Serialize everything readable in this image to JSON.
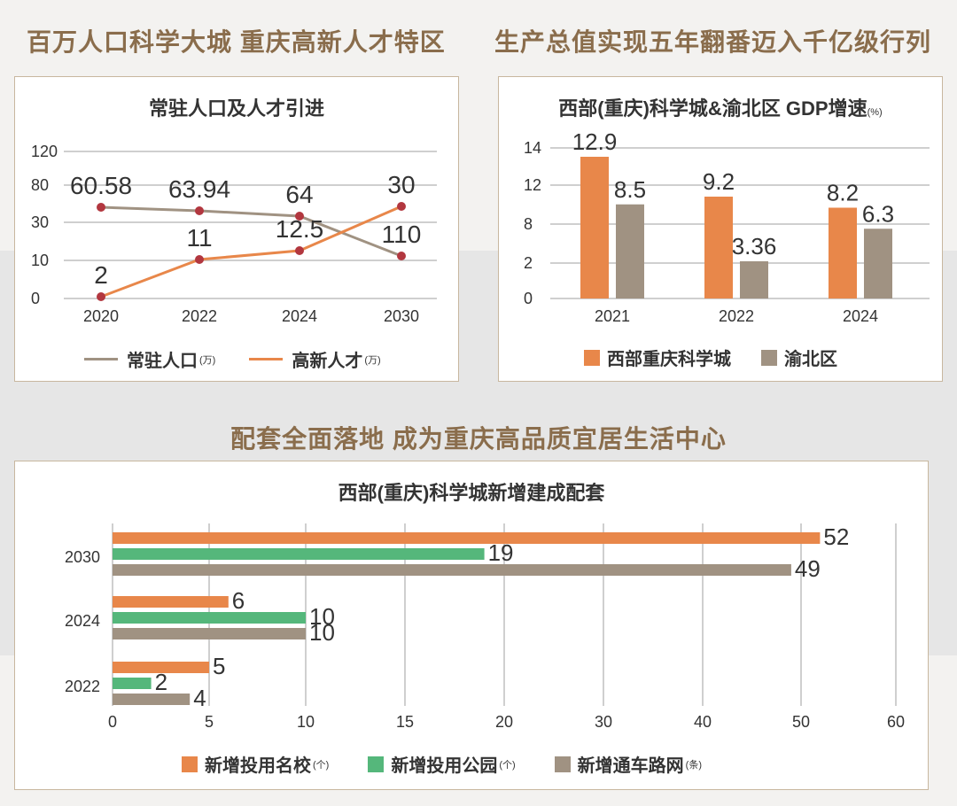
{
  "headings": {
    "top_left": "百万人口科学大城 重庆高新人才特区",
    "top_right": "生产总值实现五年翻番迈入千亿级行列",
    "bottom": "配套全面落地 成为重庆高品质宜居生活中心"
  },
  "colors": {
    "heading": "#8a6d4c",
    "orange": "#e8874a",
    "taupe": "#a09282",
    "green": "#55b77b",
    "marker": "#b2373f",
    "grid": "#cfcfcf",
    "band": "#e6e6e6"
  },
  "chart_data": [
    {
      "type": "line",
      "title": "常驻人口及人才引进",
      "x": [
        "2020",
        "2022",
        "2024",
        "2030"
      ],
      "y_ticks": [
        "0",
        "10",
        "30",
        "80",
        "120"
      ],
      "series": [
        {
          "name": "常驻人口",
          "unit": "(万)",
          "values": [
            60.58,
            63.94,
            64,
            110
          ],
          "labels": [
            "60.58",
            "63.94",
            "64",
            "110"
          ],
          "y_positions": [
            0.19,
            0.15,
            0.09,
            -0.36
          ]
        },
        {
          "name": "高新人才",
          "unit": "(万)",
          "values": [
            2,
            11,
            12.5,
            30
          ],
          "labels": [
            "2",
            "11",
            "12.5",
            "30"
          ],
          "y_positions": [
            -0.82,
            -0.4,
            -0.3,
            0.2
          ]
        }
      ]
    },
    {
      "type": "bar",
      "title": "西部(重庆)科学城&渝北区 GDP增速",
      "title_unit": "(%)",
      "categories": [
        "2021",
        "2022",
        "2024"
      ],
      "y_ticks": [
        "0",
        "2",
        "8",
        "12",
        "14"
      ],
      "series": [
        {
          "name": "西部重庆科学城",
          "values": [
            12.9,
            9.2,
            8.2
          ],
          "labels": [
            "12.9",
            "9.2",
            "8.2"
          ]
        },
        {
          "name": "渝北区",
          "values": [
            8.5,
            3.36,
            6.3
          ],
          "labels": [
            "8.5",
            "3.36",
            "6.3"
          ]
        }
      ]
    },
    {
      "type": "bar",
      "orientation": "horizontal",
      "title": "西部(重庆)科学城新增建成配套",
      "categories": [
        "2030",
        "2024",
        "2022"
      ],
      "x_ticks": [
        "0",
        "5",
        "10",
        "15",
        "20",
        "30",
        "40",
        "50",
        "60"
      ],
      "series": [
        {
          "name": "新增投用名校",
          "unit": "(个)",
          "values": [
            52,
            6,
            5
          ]
        },
        {
          "name": "新增投用公园",
          "unit": "(个)",
          "values": [
            19,
            10,
            2
          ]
        },
        {
          "name": "新增通车路网",
          "unit": "(条)",
          "values": [
            49,
            10,
            4
          ]
        }
      ]
    }
  ]
}
